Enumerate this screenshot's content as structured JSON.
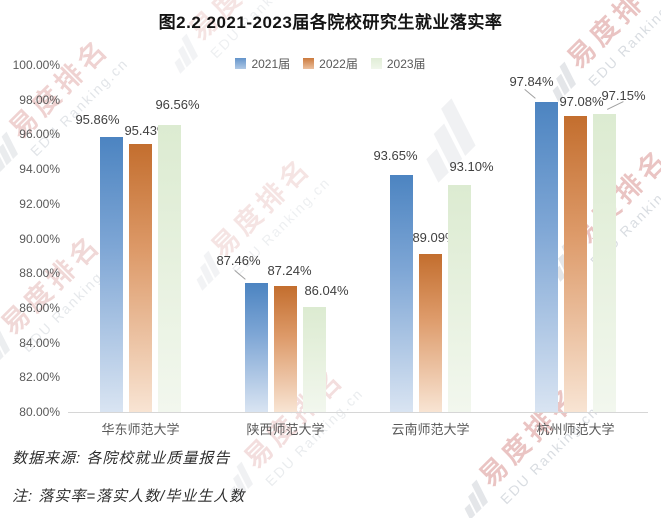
{
  "title": "图2.2 2021-2023届各院校研究生就业落实率",
  "chart_data": {
    "type": "bar",
    "categories": [
      "华东师范大学",
      "陕西师范大学",
      "云南师范大学",
      "杭州师范大学"
    ],
    "series": [
      {
        "name": "2021届",
        "color": "#5b8ec4",
        "values": [
          95.86,
          87.46,
          93.65,
          97.84
        ]
      },
      {
        "name": "2022届",
        "color": "#c4702f",
        "values": [
          95.43,
          87.24,
          89.09,
          97.08
        ]
      },
      {
        "name": "2023届",
        "color": "#dcebd1",
        "values": [
          96.56,
          86.04,
          93.1,
          97.15
        ]
      }
    ],
    "value_label_format": "0.00%",
    "ylim": [
      80,
      100
    ],
    "ytick_step": 2,
    "yticks": [
      "100.00%",
      "98.00%",
      "96.00%",
      "94.00%",
      "92.00%",
      "90.00%",
      "88.00%",
      "86.00%",
      "84.00%",
      "82.00%",
      "80.00%"
    ],
    "grid": false,
    "legend_position": "top-center"
  },
  "footnotes": {
    "source": "数据来源: 各院校就业质量报告",
    "note": "注: 落实率=落实人数/毕业生人数"
  },
  "watermark": {
    "brand_cn": "易度排名",
    "brand_en": "EDU Ranking.cn"
  },
  "colors": {
    "axis_text": "#595959",
    "value_text": "#404040",
    "watermark_red": "#c0504d",
    "watermark_gray": "#8c98a6"
  }
}
